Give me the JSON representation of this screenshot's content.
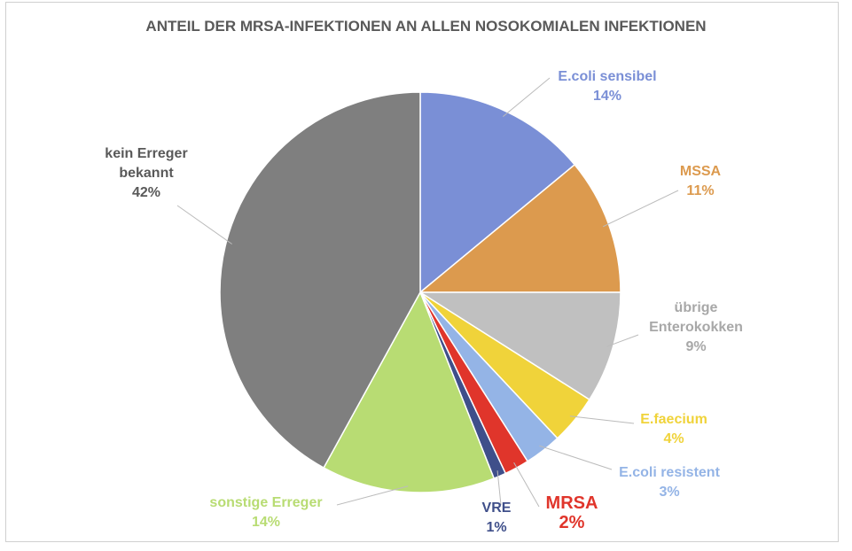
{
  "chart_data": {
    "type": "pie",
    "title": "ANTEIL DER MRSA-INFEKTIONEN AN ALLEN NOSOKOMIALEN INFEKTIONEN",
    "categories": [
      "E.coli sensibel",
      "MSSA",
      "übrige Enterokokken",
      "E.faecium",
      "E.coli resistent",
      "MRSA",
      "VRE",
      "sonstige Erreger",
      "kein Erreger bekannt"
    ],
    "values": [
      14,
      11,
      9,
      4,
      3,
      2,
      1,
      14,
      42
    ],
    "value_labels": [
      "14%",
      "11%",
      "9%",
      "4%",
      "3%",
      "2%",
      "1%",
      "14%",
      "42%"
    ],
    "colors": [
      "#7a8fd6",
      "#dc9a4e",
      "#c0c0c0",
      "#f0d33a",
      "#94b4e6",
      "#e0352b",
      "#3f4f8a",
      "#b8dc73",
      "#7f7f7f"
    ]
  }
}
